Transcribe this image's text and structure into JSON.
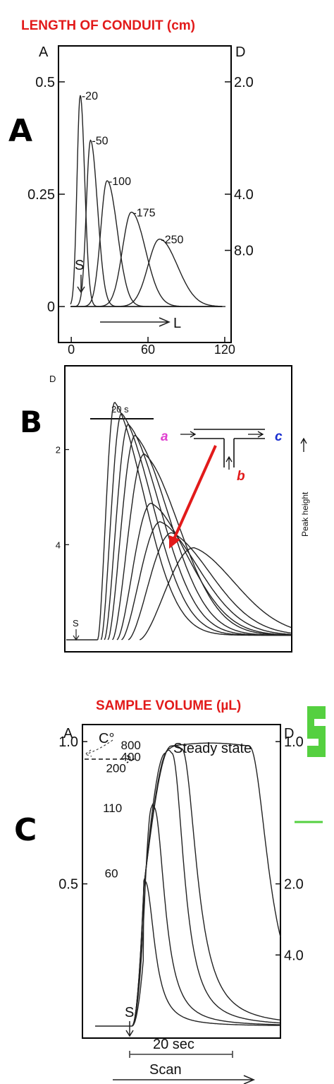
{
  "panels": {
    "a": {
      "letter": "A"
    },
    "b": {
      "letter": "B"
    },
    "c": {
      "letter": "C"
    }
  },
  "colors": {
    "red": "#e21a1a",
    "magenta": "#e040d0",
    "blue": "#1a2fd0",
    "green": "#55d040"
  },
  "chart_data": [
    {
      "type": "line",
      "title": "LENGTH OF CONDUIT (cm)",
      "left_axis_label": "A",
      "right_axis_label": "D",
      "xlabel": "L",
      "left_ticks": [
        "0.5",
        "0.25",
        "0"
      ],
      "left_tick_values": [
        0.5,
        0.25,
        0
      ],
      "right_ticks": [
        "2.0",
        "4.0",
        "8.0"
      ],
      "right_tick_values": [
        0.5,
        0.25,
        0.125
      ],
      "x_ticks": [
        "0",
        "60",
        "120"
      ],
      "x_tick_values": [
        0,
        60,
        120
      ],
      "sample_marker": "S",
      "ylim": [
        -0.08,
        0.58
      ],
      "xlim": [
        -10,
        125
      ],
      "series": [
        {
          "name": "20",
          "peak_x": 7,
          "peak_y": 0.47,
          "sigma_l": 2.5,
          "sigma_r": 3.5
        },
        {
          "name": "50",
          "peak_x": 15,
          "peak_y": 0.37,
          "sigma_l": 3.2,
          "sigma_r": 5.5
        },
        {
          "name": "100",
          "peak_x": 28,
          "peak_y": 0.28,
          "sigma_l": 5,
          "sigma_r": 8
        },
        {
          "name": "175",
          "peak_x": 47,
          "peak_y": 0.21,
          "sigma_l": 7,
          "sigma_r": 11
        },
        {
          "name": "250",
          "peak_x": 69,
          "peak_y": 0.15,
          "sigma_l": 9,
          "sigma_r": 14
        }
      ]
    },
    {
      "type": "line",
      "right_axis_label": "D",
      "left_ticks": [
        "2",
        "4"
      ],
      "left_tick_values": [
        0.5,
        0.25
      ],
      "scale_bar": "20 s",
      "sample_marker": "S",
      "vertical_label": "Peak height",
      "inset": {
        "inlet_a": "a",
        "inlet_b": "b",
        "outlet_c": "c"
      },
      "ylim": [
        0,
        0.72
      ],
      "xlim": [
        0,
        100
      ],
      "series": [
        {
          "start": 14.5,
          "peak_x": 22,
          "peak_y": 0.62,
          "tail": 20
        },
        {
          "start": 16,
          "peak_x": 25,
          "peak_y": 0.59,
          "tail": 21
        },
        {
          "start": 17.5,
          "peak_x": 28,
          "peak_y": 0.56,
          "tail": 22
        },
        {
          "start": 19,
          "peak_x": 31,
          "peak_y": 0.53,
          "tail": 23
        },
        {
          "start": 21,
          "peak_x": 35,
          "peak_y": 0.48,
          "tail": 24
        },
        {
          "start": 23,
          "peak_x": 38,
          "peak_y": 0.35,
          "tail": 25
        },
        {
          "start": 25,
          "peak_x": 42,
          "peak_y": 0.3,
          "tail": 26
        },
        {
          "start": 28,
          "peak_x": 47,
          "peak_y": 0.27,
          "tail": 27
        },
        {
          "start": 33,
          "peak_x": 57,
          "peak_y": 0.23,
          "tail": 28
        }
      ]
    },
    {
      "type": "line",
      "title": "SAMPLE VOLUME (µL)",
      "left_axis_label": "A",
      "right_axis_label": "D",
      "left_ticks": [
        "1.0",
        "0.5"
      ],
      "left_tick_values": [
        1.0,
        0.5
      ],
      "right_ticks": [
        "1.0",
        "2.0",
        "4.0"
      ],
      "right_tick_values": [
        1.0,
        0.5,
        0.25
      ],
      "c0_label": "C°",
      "steady_state_label": "Steady state",
      "scale_bar": "20 sec",
      "xlabel": "Scan",
      "sample_marker": "S",
      "ylim": [
        0,
        1.06
      ],
      "xlim": [
        0,
        100
      ],
      "series": [
        {
          "name": "800",
          "start": 25,
          "rise": 6,
          "peak_x": 45,
          "peak_y": 0.985,
          "fall_start": 84,
          "tail": 14
        },
        {
          "name": "400",
          "start": 25,
          "rise": 6,
          "peak_x": 44,
          "peak_y": 0.975,
          "fall_start": 50,
          "tail": 11
        },
        {
          "name": "200",
          "start": 25,
          "rise": 6,
          "peak_x": 42,
          "peak_y": 0.96,
          "fall_start": 45,
          "tail": 9
        },
        {
          "name": "110",
          "start": 25,
          "rise": 6,
          "peak_x": 35,
          "peak_y": 0.77,
          "fall_start": 36,
          "tail": 8
        },
        {
          "name": "60",
          "start": 25,
          "rise": 6,
          "peak_x": 31,
          "peak_y": 0.51,
          "fall_start": 31.5,
          "tail": 7
        }
      ]
    }
  ]
}
